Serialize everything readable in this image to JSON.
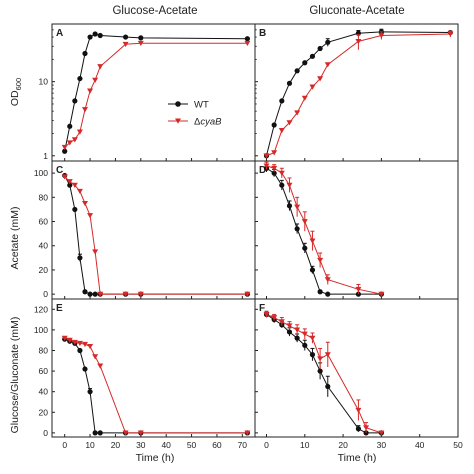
{
  "column_titles": [
    "Glucose-Acetate",
    "Gluconate-Acetate"
  ],
  "xlabel": "Time (h)",
  "ylabels": {
    "row1_main": "OD",
    "row1_sub": "600",
    "row2": "Acetate (mM)",
    "row3": "Glucose/Gluconate (mM)"
  },
  "legend": {
    "wt": "WT",
    "mut_prefix": "Δ",
    "mut_italic": "cyaB"
  },
  "colors": {
    "wt": "#111111",
    "cyaB": "#d62a2a",
    "axis": "#222222"
  },
  "chart_data": [
    {
      "panel": "A",
      "type": "line",
      "scale": "log",
      "xlim": [
        -5,
        75
      ],
      "ylim": [
        0.85,
        60
      ],
      "xticks": [
        "0",
        "10",
        "20",
        "30",
        "40",
        "50",
        "60",
        "70"
      ],
      "yticks": [
        {
          "v": 1,
          "l": "1"
        },
        {
          "v": 10,
          "l": "10"
        }
      ],
      "series": [
        {
          "name": "WT",
          "marker": "circle",
          "x": [
            0,
            2,
            4,
            6,
            8,
            10,
            12,
            14,
            24,
            30,
            72
          ],
          "y": [
            1.15,
            2.5,
            5.5,
            11,
            24,
            40,
            44,
            42,
            40,
            39,
            38
          ],
          "err": [
            0,
            0,
            0,
            0,
            0,
            0,
            0,
            0,
            0,
            0,
            0
          ]
        },
        {
          "name": "ΔcyaB",
          "marker": "triangle",
          "x": [
            0,
            2,
            4,
            6,
            8,
            10,
            12,
            14,
            24,
            30,
            72
          ],
          "y": [
            1.3,
            1.5,
            1.65,
            2.1,
            4.2,
            7.5,
            10.5,
            16,
            32,
            33,
            33
          ],
          "err": [
            0,
            0,
            0,
            0,
            0,
            0,
            0,
            0,
            0,
            0,
            0
          ]
        }
      ]
    },
    {
      "panel": "B",
      "type": "line",
      "scale": "log",
      "xlim": [
        -3,
        50
      ],
      "ylim": [
        0.85,
        60
      ],
      "xticks": [
        "0",
        "10",
        "20",
        "30",
        "40",
        "50"
      ],
      "yticks": [
        {
          "v": 1,
          "l": ""
        },
        {
          "v": 10,
          "l": ""
        }
      ],
      "series": [
        {
          "name": "WT",
          "marker": "circle",
          "x": [
            0,
            2,
            4,
            6,
            8,
            10,
            12,
            14,
            16,
            24,
            30,
            48
          ],
          "y": [
            1.0,
            2.6,
            5.5,
            9.5,
            14,
            18,
            22,
            28,
            34,
            45,
            47,
            46
          ],
          "err": [
            0,
            0,
            0,
            0,
            0,
            0,
            0,
            0,
            4,
            4,
            4,
            2
          ]
        },
        {
          "name": "ΔcyaB",
          "marker": "triangle",
          "x": [
            0,
            2,
            4,
            6,
            8,
            10,
            12,
            14,
            16,
            24,
            30,
            48
          ],
          "y": [
            1.0,
            1.1,
            2.2,
            2.8,
            3.8,
            6.0,
            8.5,
            11,
            17,
            35,
            42,
            44
          ],
          "err": [
            0,
            0,
            0,
            0,
            0,
            0,
            0,
            0,
            0,
            8,
            5,
            4
          ]
        }
      ]
    },
    {
      "panel": "C",
      "type": "line",
      "scale": "linear",
      "xlim": [
        -5,
        75
      ],
      "ylim": [
        -4,
        110
      ],
      "xticks": [
        "0",
        "10",
        "20",
        "30",
        "40",
        "50",
        "60",
        "70"
      ],
      "yticks": [
        {
          "v": 0,
          "l": "0"
        },
        {
          "v": 20,
          "l": "20"
        },
        {
          "v": 40,
          "l": "40"
        },
        {
          "v": 60,
          "l": "60"
        },
        {
          "v": 80,
          "l": "80"
        },
        {
          "v": 100,
          "l": "100"
        }
      ],
      "series": [
        {
          "name": "WT",
          "marker": "circle",
          "x": [
            0,
            2,
            4,
            6,
            8,
            10,
            12,
            14,
            24,
            30,
            72
          ],
          "y": [
            98,
            90,
            70,
            30,
            2,
            0,
            0,
            0,
            0,
            0,
            0
          ],
          "err": [
            0,
            0,
            0,
            3,
            0,
            0,
            0,
            0,
            0,
            0,
            0
          ]
        },
        {
          "name": "ΔcyaB",
          "marker": "triangle",
          "x": [
            0,
            2,
            4,
            6,
            8,
            10,
            12,
            14,
            24,
            30,
            72
          ],
          "y": [
            97,
            93,
            90,
            85,
            75,
            65,
            35,
            0,
            0,
            0,
            0
          ],
          "err": [
            0,
            0,
            0,
            0,
            0,
            0,
            0,
            0,
            0,
            0,
            0
          ]
        }
      ]
    },
    {
      "panel": "D",
      "type": "line",
      "scale": "linear",
      "xlim": [
        -3,
        50
      ],
      "ylim": [
        -4,
        110
      ],
      "xticks": [
        "0",
        "10",
        "20",
        "30",
        "40",
        "50"
      ],
      "yticks": [
        {
          "v": 0,
          "l": ""
        },
        {
          "v": 20,
          "l": ""
        },
        {
          "v": 40,
          "l": ""
        },
        {
          "v": 60,
          "l": ""
        },
        {
          "v": 80,
          "l": ""
        },
        {
          "v": 100,
          "l": ""
        }
      ],
      "series": [
        {
          "name": "WT",
          "marker": "circle",
          "x": [
            0,
            2,
            4,
            6,
            8,
            10,
            12,
            14,
            16,
            24,
            30
          ],
          "y": [
            104,
            100,
            90,
            73,
            54,
            38,
            20,
            2,
            0,
            0,
            0
          ],
          "err": [
            3,
            3,
            4,
            4,
            4,
            4,
            3,
            1,
            0,
            0,
            0
          ]
        },
        {
          "name": "ΔcyaB",
          "marker": "triangle",
          "x": [
            0,
            2,
            4,
            6,
            8,
            10,
            12,
            14,
            16,
            24,
            30
          ],
          "y": [
            106,
            104,
            100,
            90,
            72,
            60,
            44,
            28,
            12,
            4,
            0
          ],
          "err": [
            3,
            3,
            4,
            6,
            8,
            8,
            8,
            6,
            4,
            4,
            0
          ]
        }
      ]
    },
    {
      "panel": "E",
      "type": "line",
      "scale": "linear",
      "xlim": [
        -5,
        75
      ],
      "ylim": [
        -4,
        130
      ],
      "xticks": [
        "0",
        "10",
        "20",
        "30",
        "40",
        "50",
        "60",
        "70"
      ],
      "yticks": [
        {
          "v": 0,
          "l": "0"
        },
        {
          "v": 20,
          "l": "20"
        },
        {
          "v": 40,
          "l": "40"
        },
        {
          "v": 60,
          "l": "60"
        },
        {
          "v": 80,
          "l": "80"
        },
        {
          "v": 100,
          "l": "100"
        },
        {
          "v": 120,
          "l": "120"
        }
      ],
      "series": [
        {
          "name": "WT",
          "marker": "circle",
          "x": [
            0,
            2,
            4,
            6,
            8,
            10,
            12,
            14,
            24,
            30,
            72
          ],
          "y": [
            91,
            89,
            87,
            80,
            62,
            40,
            0,
            0,
            0,
            0,
            0
          ],
          "err": [
            0,
            0,
            0,
            0,
            0,
            3,
            0,
            0,
            0,
            0,
            0
          ]
        },
        {
          "name": "ΔcyaB",
          "marker": "triangle",
          "x": [
            0,
            2,
            4,
            6,
            8,
            10,
            12,
            14,
            24,
            30,
            72
          ],
          "y": [
            92,
            90,
            88,
            87,
            86,
            84,
            74,
            65,
            0,
            0,
            0
          ],
          "err": [
            0,
            0,
            0,
            0,
            0,
            0,
            0,
            0,
            0,
            0,
            0
          ]
        }
      ]
    },
    {
      "panel": "F",
      "type": "line",
      "scale": "linear",
      "xlim": [
        -3,
        50
      ],
      "ylim": [
        -4,
        130
      ],
      "xticks": [
        "0",
        "10",
        "20",
        "30",
        "40",
        "50"
      ],
      "yticks": [
        {
          "v": 0,
          "l": ""
        },
        {
          "v": 20,
          "l": ""
        },
        {
          "v": 40,
          "l": ""
        },
        {
          "v": 60,
          "l": ""
        },
        {
          "v": 80,
          "l": ""
        },
        {
          "v": 100,
          "l": ""
        },
        {
          "v": 120,
          "l": ""
        }
      ],
      "series": [
        {
          "name": "WT",
          "marker": "circle",
          "x": [
            0,
            2,
            4,
            6,
            8,
            10,
            12,
            14,
            16,
            24,
            26,
            30
          ],
          "y": [
            115,
            110,
            105,
            98,
            92,
            85,
            76,
            60,
            45,
            4,
            0,
            0
          ],
          "err": [
            3,
            3,
            3,
            4,
            4,
            5,
            6,
            8,
            10,
            3,
            0,
            0
          ]
        },
        {
          "name": "ΔcyaB",
          "marker": "triangle",
          "x": [
            0,
            2,
            4,
            6,
            8,
            10,
            12,
            14,
            16,
            24,
            26,
            30
          ],
          "y": [
            115,
            112,
            108,
            104,
            100,
            96,
            92,
            72,
            76,
            22,
            5,
            0
          ],
          "err": [
            3,
            3,
            4,
            4,
            5,
            5,
            5,
            10,
            12,
            10,
            5,
            0
          ]
        }
      ]
    }
  ]
}
